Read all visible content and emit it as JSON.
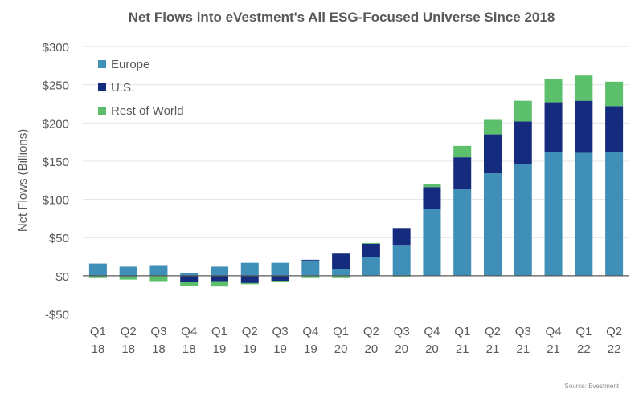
{
  "chart_data": {
    "type": "bar",
    "stacked": true,
    "title": "Net Flows into eVestment's All ESG-Focused Universe Since 2018",
    "xlabel": "",
    "ylabel": "Net Flows (Billions)",
    "ylim": [
      -50,
      300
    ],
    "yticks": [
      -50,
      0,
      50,
      100,
      150,
      200,
      250,
      300
    ],
    "ytick_labels": [
      "-$50",
      "$0",
      "$50",
      "$100",
      "$150",
      "$200",
      "$250",
      "$300"
    ],
    "grid": true,
    "legend_position": "top-left",
    "categories": [
      "Q1 18",
      "Q2 18",
      "Q3 18",
      "Q4 18",
      "Q1 19",
      "Q2 19",
      "Q3 19",
      "Q4 19",
      "Q1 20",
      "Q2 20",
      "Q3 20",
      "Q4 20",
      "Q1 21",
      "Q2 21",
      "Q3 21",
      "Q4 21",
      "Q1 22",
      "Q2 22"
    ],
    "series": [
      {
        "name": "Europe",
        "color": "#3F8FB8",
        "values": [
          16,
          12,
          13,
          3,
          12,
          17,
          17,
          20,
          9,
          24,
          39.5,
          87.5,
          113,
          134,
          146,
          162,
          161,
          162
        ]
      },
      {
        "name": "U.S.",
        "color": "#152B7E",
        "values": [
          0,
          -1,
          0,
          -8.5,
          -7,
          -9.5,
          -6.5,
          1,
          20,
          18,
          23,
          28.5,
          42,
          51,
          56,
          65,
          68,
          60
        ]
      },
      {
        "name": "Rest of World",
        "color": "#5BBF6C",
        "values": [
          -3,
          -4,
          -7,
          -4.5,
          -7,
          -1.5,
          -1,
          -3,
          -3,
          1,
          -1,
          3.5,
          15,
          19,
          27,
          30,
          33,
          32
        ]
      }
    ],
    "source": "Source: Evestment"
  }
}
